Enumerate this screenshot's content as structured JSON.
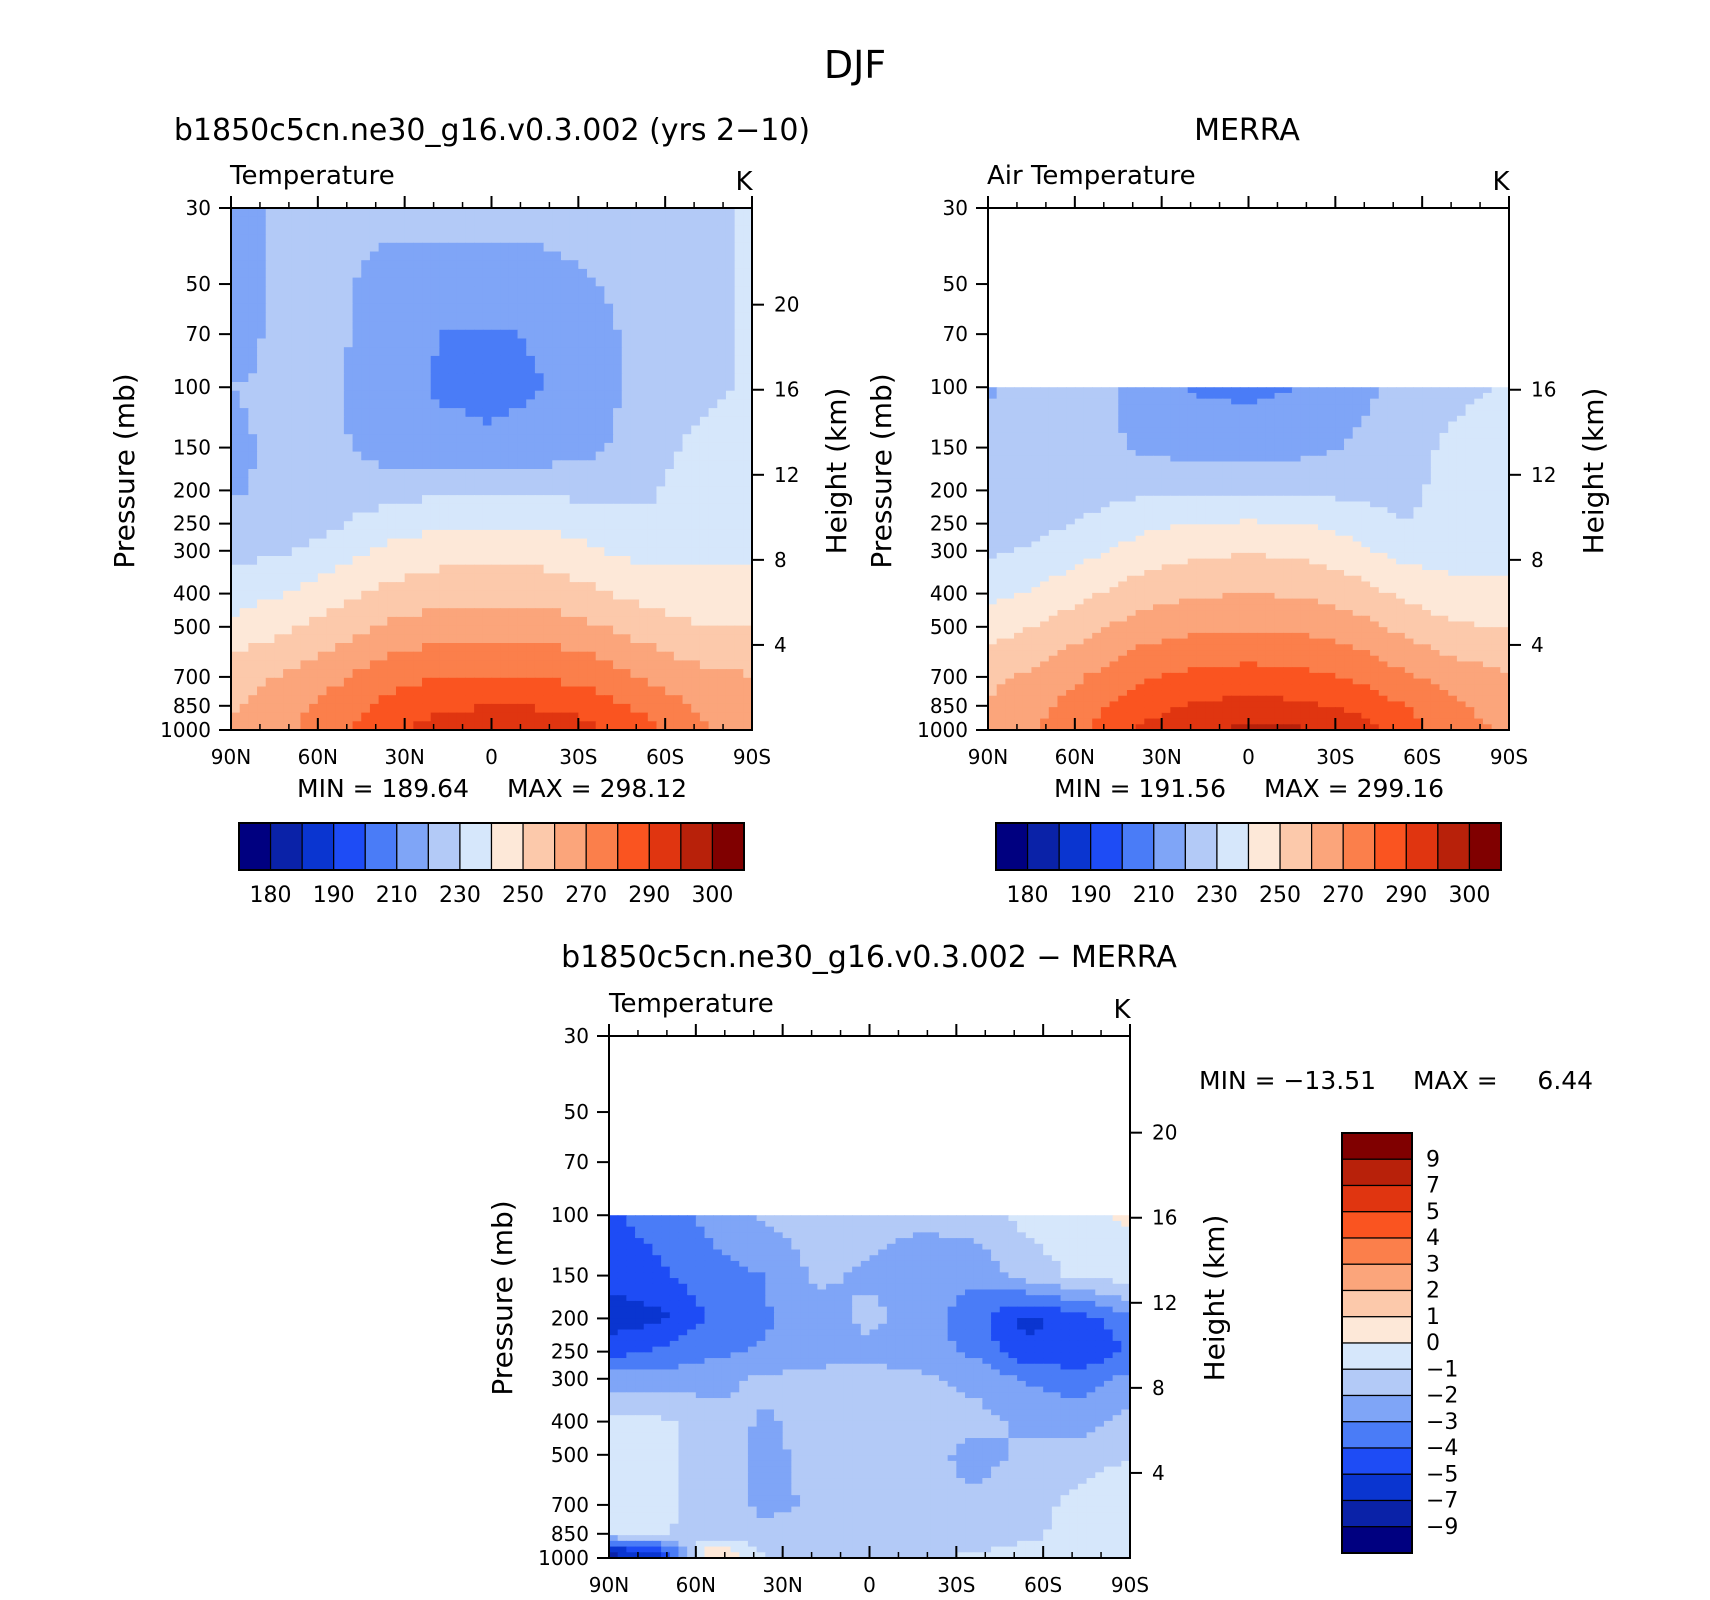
{
  "figure_title": "DJF",
  "colors": {
    "abs_scale": [
      "#000080",
      "#0a22a8",
      "#0a35d0",
      "#1e4cf5",
      "#4a7cf7",
      "#7fa5f7",
      "#b3caf7",
      "#d6e7fb",
      "#fde8d8",
      "#fcc9ab",
      "#fba57b",
      "#fb7f4b",
      "#fa5420",
      "#e03510",
      "#b8210a",
      "#800000"
    ],
    "diff_scale": [
      "#000080",
      "#0a22a8",
      "#0a35d0",
      "#1e4cf5",
      "#4a7cf7",
      "#7fa5f7",
      "#b3caf7",
      "#d6e7fb",
      "#fde8d8",
      "#fcc9ab",
      "#fba57b",
      "#fb7f4b",
      "#fa5420",
      "#e03510",
      "#b8210a",
      "#800000"
    ]
  },
  "chart_data": [
    {
      "type": "heatmap",
      "title": "b1850c5cn.ne30_g16.v0.3.002 (yrs 2−10)",
      "variable": "Temperature",
      "units": "K",
      "xlabel": "",
      "ylabel": "Pressure (mb)",
      "ylabel_right": "Height (km)",
      "x_ticks": [
        "90N",
        "60N",
        "30N",
        "0",
        "30S",
        "60S",
        "90S"
      ],
      "y_ticks": [
        "30",
        "50",
        "70",
        "100",
        "150",
        "200",
        "250",
        "300",
        "400",
        "500",
        "700",
        "850",
        "1000"
      ],
      "y_scale": "log",
      "ylim": [
        1000,
        30
      ],
      "right_ticks": [
        "20",
        "16",
        "12",
        "8",
        "4"
      ],
      "min_label": "MIN = 189.64",
      "max_label": "MAX = 298.12",
      "min": 189.64,
      "max": 298.12,
      "colorbar_orientation": "horizontal",
      "colorbar_labels": [
        "180",
        "190",
        "210",
        "230",
        "250",
        "270",
        "290",
        "300"
      ],
      "top_bound_mb": 30,
      "levels": [
        170,
        180,
        190,
        200,
        210,
        220,
        230,
        240,
        250,
        260,
        270,
        280,
        290,
        300
      ],
      "profile": {
        "fields": [
          {
            "p": 30,
            "z": [
              205,
              212,
              212,
              212,
              214,
              214,
              214,
              214,
              214,
              218,
              221
            ]
          },
          {
            "p": 50,
            "z": [
              205,
              212,
              212,
              207,
              205,
              205,
              206,
              210,
              214,
              217,
              221
            ]
          },
          {
            "p": 70,
            "z": [
              207,
              212,
              212,
              205,
              200,
              199,
              201,
              207,
              214,
              217,
              221
            ]
          },
          {
            "p": 100,
            "z": [
              210,
              211,
              211,
              204,
              199,
              197,
              200,
              206,
              214,
              218,
              221
            ]
          },
          {
            "p": 150,
            "z": [
              209,
              211,
              212,
              205,
              203,
              202,
              204,
              208,
              217,
              222,
              225
            ]
          },
          {
            "p": 200,
            "z": [
              209,
              212,
              214,
              216,
              218,
              219,
              218,
              217,
              219,
              224,
              225
            ]
          },
          {
            "p": 250,
            "z": [
              212,
              214,
              219,
              225,
              228,
              229,
              228,
              225,
              221,
              225,
              226
            ]
          },
          {
            "p": 300,
            "z": [
              216,
              219,
              225,
              232,
              236,
              237,
              236,
              231,
              226,
              227,
              228
            ]
          },
          {
            "p": 400,
            "z": [
              225,
              230,
              236,
              243,
              246,
              247,
              246,
              242,
              236,
              234,
              234
            ]
          },
          {
            "p": 500,
            "z": [
              233,
              238,
              245,
              252,
              255,
              256,
              255,
              251,
              245,
              240,
              240
            ]
          },
          {
            "p": 700,
            "z": [
              245,
              251,
              258,
              266,
              270,
              271,
              270,
              266,
              259,
              253,
              250
            ]
          },
          {
            "p": 850,
            "z": [
              249,
              256,
              264,
              272,
              278,
              280,
              279,
              275,
              267,
              258,
              254
            ]
          },
          {
            "p": 1000,
            "z": [
              250,
              257,
              268,
              278,
              285,
              288,
              287,
              282,
              272,
              262,
              256
            ]
          }
        ]
      }
    },
    {
      "type": "heatmap",
      "title": "MERRA",
      "variable": "Air Temperature",
      "units": "K",
      "xlabel": "",
      "ylabel": "Pressure (mb)",
      "ylabel_right": "Height (km)",
      "x_ticks": [
        "90N",
        "60N",
        "30N",
        "0",
        "30S",
        "60S",
        "90S"
      ],
      "y_ticks": [
        "30",
        "50",
        "70",
        "100",
        "150",
        "200",
        "250",
        "300",
        "400",
        "500",
        "700",
        "850",
        "1000"
      ],
      "y_scale": "log",
      "ylim": [
        1000,
        30
      ],
      "right_ticks": [
        "16",
        "12",
        "8",
        "4"
      ],
      "min_label": "MIN = 191.56",
      "max_label": "MAX = 299.16",
      "min": 191.56,
      "max": 299.16,
      "colorbar_orientation": "horizontal",
      "colorbar_labels": [
        "180",
        "190",
        "210",
        "230",
        "250",
        "270",
        "290",
        "300"
      ],
      "top_bound_mb": 100,
      "levels": [
        170,
        180,
        190,
        200,
        210,
        220,
        230,
        240,
        250,
        260,
        270,
        280,
        290,
        300
      ],
      "profile": {
        "fields": [
          {
            "p": 100,
            "z": [
              209,
              214,
              214,
              205,
              199,
              198,
              200,
              206,
              214,
              218,
              221
            ]
          },
          {
            "p": 150,
            "z": [
              212,
              214,
              214,
              208,
              206,
              205,
              207,
              211,
              217,
              222,
              225
            ]
          },
          {
            "p": 200,
            "z": [
              212,
              214,
              216,
              218,
              219,
              219,
              219,
              217,
              218,
              223,
              225
            ]
          },
          {
            "p": 250,
            "z": [
              214,
              217,
              222,
              228,
              230,
              231,
              230,
              226,
              220,
              223,
              225
            ]
          },
          {
            "p": 300,
            "z": [
              218,
              222,
              228,
              234,
              238,
              239,
              238,
              233,
              226,
              226,
              227
            ]
          },
          {
            "p": 400,
            "z": [
              227,
              232,
              239,
              246,
              249,
              250,
              249,
              245,
              238,
              233,
              232
            ]
          },
          {
            "p": 500,
            "z": [
              235,
              241,
              248,
              255,
              258,
              259,
              258,
              254,
              247,
              241,
              240
            ]
          },
          {
            "p": 700,
            "z": [
              247,
              253,
              261,
              269,
              273,
              274,
              273,
              269,
              262,
              255,
              251
            ]
          },
          {
            "p": 850,
            "z": [
              251,
              258,
              267,
              276,
              281,
              283,
              282,
              278,
              270,
              261,
              255
            ]
          },
          {
            "p": 1000,
            "z": [
              253,
              260,
              271,
              282,
              289,
              292,
              291,
              286,
              275,
              264,
              258
            ]
          }
        ]
      }
    },
    {
      "type": "heatmap",
      "title": "b1850c5cn.ne30_g16.v0.3.002 − MERRA",
      "variable": "Temperature",
      "units": "K",
      "xlabel": "",
      "ylabel": "Pressure (mb)",
      "ylabel_right": "Height (km)",
      "x_ticks": [
        "90N",
        "60N",
        "30N",
        "0",
        "30S",
        "60S",
        "90S"
      ],
      "y_ticks": [
        "30",
        "50",
        "70",
        "100",
        "150",
        "200",
        "250",
        "300",
        "400",
        "500",
        "700",
        "850",
        "1000"
      ],
      "y_scale": "log",
      "ylim": [
        1000,
        30
      ],
      "right_ticks": [
        "20",
        "16",
        "12",
        "8",
        "4"
      ],
      "min_label": "MIN = −13.51",
      "max_label": "MAX =     6.44",
      "min": -13.51,
      "max": 6.44,
      "colorbar_orientation": "vertical",
      "colorbar_labels": [
        "9",
        "7",
        "5",
        "4",
        "3",
        "2",
        "1",
        "0",
        "−1",
        "−2",
        "−3",
        "−4",
        "−5",
        "−7",
        "−9"
      ],
      "top_bound_mb": 100,
      "levels": [
        -11,
        -9,
        -7,
        -5,
        -4,
        -3,
        -2,
        -1,
        0,
        1,
        2,
        3,
        4,
        5,
        7,
        9
      ],
      "profile": {
        "fields": [
          {
            "p": 100,
            "z": [
              -4.2,
              -3.5,
              -2.6,
              -1.8,
              -1.5,
              -1.6,
              -1.8,
              -1.4,
              -0.7,
              -0.3,
              0.2
            ]
          },
          {
            "p": 150,
            "z": [
              -4.6,
              -4.2,
              -3.4,
              -3.0,
              -1.8,
              -2.2,
              -2.6,
              -2.8,
              -1.6,
              -0.8,
              -0.5
            ]
          },
          {
            "p": 200,
            "z": [
              -5.6,
              -5.2,
              -3.8,
              -3.1,
              -2.5,
              -1.7,
              -2.5,
              -3.6,
              -5.3,
              -4.6,
              -3.2
            ]
          },
          {
            "p": 250,
            "z": [
              -4.4,
              -3.8,
              -3.2,
              -2.9,
              -2.4,
              -2.3,
              -2.6,
              -3.2,
              -4.7,
              -4.9,
              -3.9
            ]
          },
          {
            "p": 300,
            "z": [
              -2.5,
              -2.6,
              -2.3,
              -1.8,
              -1.7,
              -1.6,
              -1.8,
              -2.3,
              -3.1,
              -3.4,
              -2.8
            ]
          },
          {
            "p": 400,
            "z": [
              -0.7,
              -0.8,
              -1.6,
              -2.1,
              -1.7,
              -1.6,
              -1.5,
              -1.6,
              -2.2,
              -2.6,
              -1.6
            ]
          },
          {
            "p": 500,
            "z": [
              -0.8,
              -0.7,
              -1.5,
              -2.3,
              -1.6,
              -1.4,
              -1.5,
              -2.4,
              -1.8,
              -1.4,
              -1.0
            ]
          },
          {
            "p": 700,
            "z": [
              -0.6,
              -0.7,
              -1.6,
              -2.2,
              -1.9,
              -1.6,
              -1.7,
              -1.8,
              -1.4,
              -0.7,
              -0.5
            ]
          },
          {
            "p": 850,
            "z": [
              -0.8,
              -0.9,
              -1.5,
              -1.8,
              -1.6,
              -1.5,
              -1.6,
              -1.7,
              -1.2,
              -0.7,
              -0.6
            ]
          },
          {
            "p": 1000,
            "z": [
              -8.0,
              -6.0,
              1.5,
              -0.9,
              -1.0,
              -1.1,
              -1.1,
              -0.8,
              -0.6,
              -0.8,
              -0.8
            ]
          }
        ]
      }
    }
  ]
}
